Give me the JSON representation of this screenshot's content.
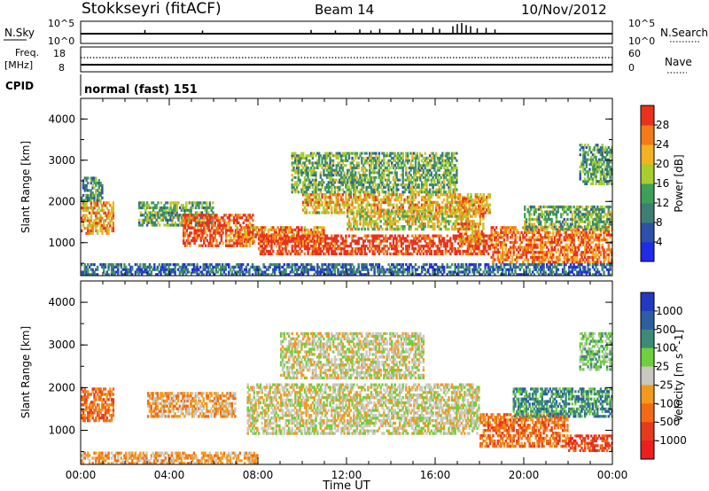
{
  "header": {
    "title": "Stokkseyri (fitACF)",
    "beam": "Beam 14",
    "date": "10/Nov/2012"
  },
  "status_panels": {
    "nsky_label": "N.Sky",
    "nsearch_label": "N.Search",
    "freq_label_line1": "Freq.",
    "freq_label_line2": "[MHz]",
    "nave_label": "Nave",
    "cpid_label": "CPID",
    "cpid_value": "normal (fast) 151",
    "left_ticks_top": [
      "10^5",
      "10^0"
    ],
    "right_ticks_top": [
      "10^5",
      "10^0"
    ],
    "left_ticks_freq": [
      "18",
      "8"
    ],
    "right_ticks_nave": [
      "60",
      "0"
    ],
    "noise_spike_times_h": [
      2.9,
      5.5,
      10.4,
      11.5,
      12.6,
      13.1,
      13.5,
      14.4,
      15.0,
      15.4,
      15.9,
      16.2,
      16.8,
      17.0,
      17.2,
      17.4,
      17.6,
      17.9,
      18.3,
      18.7
    ],
    "noise_spike_heights": [
      0.35,
      0.3,
      0.35,
      0.3,
      0.4,
      0.3,
      0.45,
      0.4,
      0.5,
      0.45,
      0.6,
      0.45,
      0.7,
      0.9,
      1.0,
      0.8,
      0.7,
      0.5,
      0.55,
      0.4
    ]
  },
  "chart_data": [
    {
      "type": "heatmap",
      "name": "Power",
      "ylabel": "Slant Range [km]",
      "ylim": [
        200,
        4500
      ],
      "yticks": [
        1000,
        2000,
        3000,
        4000
      ],
      "xlim": [
        0,
        24
      ],
      "colorbar": {
        "label": "Power [dB]",
        "ticks": [
          "4",
          "8",
          "12",
          "16",
          "20",
          "24",
          "28"
        ],
        "colors": [
          "#1f2be6",
          "#2d50a8",
          "#3e7f72",
          "#3f9f5a",
          "#a9cc2e",
          "#f2b321",
          "#f27a1a",
          "#e8321e"
        ]
      },
      "regions": [
        {
          "t0": 0.0,
          "t1": 1.5,
          "r0": 1200,
          "r1": 2000,
          "level": 0.75
        },
        {
          "t0": 0.0,
          "t1": 1.0,
          "r0": 2000,
          "r1": 2600,
          "level": 0.35
        },
        {
          "t0": 2.6,
          "t1": 6.0,
          "r0": 1400,
          "r1": 2000,
          "level": 0.45
        },
        {
          "t0": 4.6,
          "t1": 7.8,
          "r0": 900,
          "r1": 1700,
          "level": 0.9
        },
        {
          "t0": 7.0,
          "t1": 11.0,
          "r0": 1000,
          "r1": 1400,
          "level": 0.8
        },
        {
          "t0": 8.0,
          "t1": 18.5,
          "r0": 700,
          "r1": 1200,
          "level": 0.95
        },
        {
          "t0": 10.0,
          "t1": 18.5,
          "r0": 1700,
          "r1": 2200,
          "level": 0.7
        },
        {
          "t0": 9.5,
          "t1": 17.0,
          "r0": 2200,
          "r1": 3200,
          "level": 0.45
        },
        {
          "t0": 12.0,
          "t1": 17.5,
          "r0": 1300,
          "r1": 1800,
          "level": 0.6
        },
        {
          "t0": 17.0,
          "t1": 18.2,
          "r0": 1000,
          "r1": 2100,
          "level": 0.75
        },
        {
          "t0": 18.5,
          "t1": 24.0,
          "r0": 500,
          "r1": 1400,
          "level": 0.85
        },
        {
          "t0": 20.0,
          "t1": 24.0,
          "r0": 1300,
          "r1": 1900,
          "level": 0.45
        },
        {
          "t0": 22.5,
          "t1": 24.0,
          "r0": 2400,
          "r1": 3400,
          "level": 0.4
        },
        {
          "t0": 0.0,
          "t1": 24.0,
          "r0": 200,
          "r1": 500,
          "level": 0.25
        }
      ]
    },
    {
      "type": "heatmap",
      "name": "Velocity",
      "ylabel": "Slant Range [km]",
      "xlabel": "Time UT",
      "ylim": [
        200,
        4500
      ],
      "yticks": [
        1000,
        2000,
        3000,
        4000
      ],
      "xlim": [
        0,
        24
      ],
      "xticks": [
        "00:00",
        "04:00",
        "08:00",
        "12:00",
        "16:00",
        "20:00",
        "00:00"
      ],
      "colorbar": {
        "label": "Velocity [m s^-1]",
        "ticks": [
          "1000",
          "500",
          "100",
          "25",
          "-25",
          "-100",
          "-500",
          "-1000"
        ],
        "colors": [
          "#2339c4",
          "#2c5ea0",
          "#3f8a77",
          "#6fcf3c",
          "#c8c8c0",
          "#f29a1f",
          "#f26a14",
          "#e63a1e",
          "#ec1e1e"
        ]
      },
      "regions": [
        {
          "t0": 0.0,
          "t1": 1.5,
          "r0": 1200,
          "r1": 2000,
          "level": 6
        },
        {
          "t0": 3.0,
          "t1": 7.0,
          "r0": 1300,
          "r1": 1900,
          "level": 5
        },
        {
          "t0": 7.5,
          "t1": 18.0,
          "r0": 900,
          "r1": 2100,
          "level": 4
        },
        {
          "t0": 9.0,
          "t1": 15.5,
          "r0": 2200,
          "r1": 3300,
          "level": 4
        },
        {
          "t0": 18.0,
          "t1": 22.0,
          "r0": 600,
          "r1": 1400,
          "level": 6
        },
        {
          "t0": 19.5,
          "t1": 24.0,
          "r0": 1300,
          "r1": 2000,
          "level": 2
        },
        {
          "t0": 22.0,
          "t1": 24.0,
          "r0": 500,
          "r1": 900,
          "level": 7
        },
        {
          "t0": 22.5,
          "t1": 24.0,
          "r0": 2400,
          "r1": 3300,
          "level": 3
        },
        {
          "t0": 0.0,
          "t1": 8.0,
          "r0": 200,
          "r1": 500,
          "level": 5
        }
      ]
    }
  ]
}
